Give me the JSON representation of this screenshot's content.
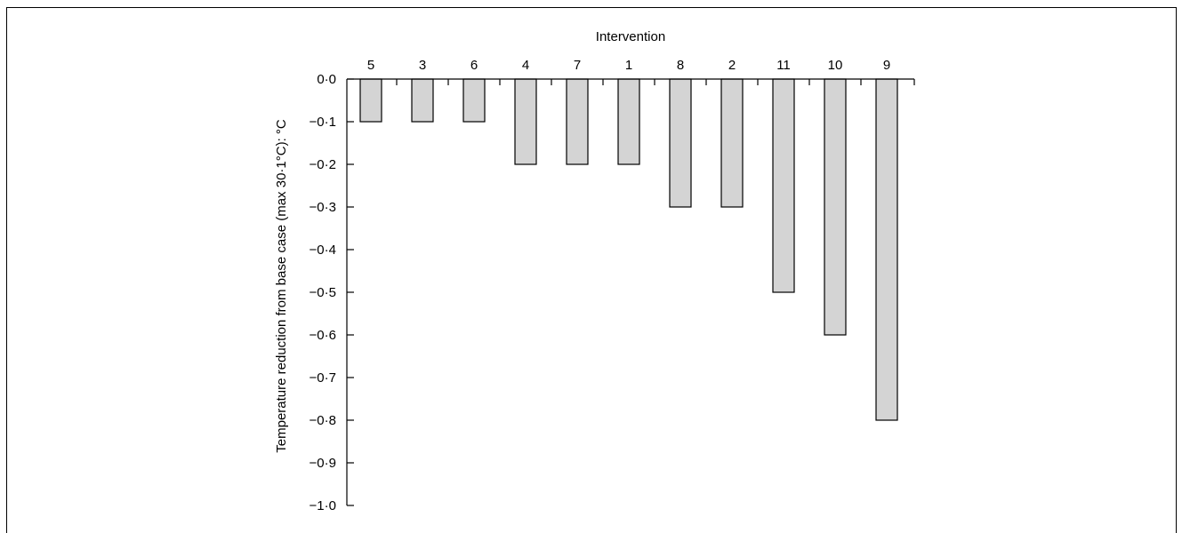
{
  "chart_data": {
    "type": "bar",
    "xlabel": "Intervention",
    "ylabel": "Temperature reduction from base case (max 30·1°C): °C",
    "categories": [
      "5",
      "3",
      "6",
      "4",
      "7",
      "1",
      "8",
      "2",
      "11",
      "10",
      "9"
    ],
    "values": [
      -0.1,
      -0.1,
      -0.1,
      -0.2,
      -0.2,
      -0.2,
      -0.3,
      -0.3,
      -0.5,
      -0.6,
      -0.8
    ],
    "ylim": [
      -1.0,
      0.0
    ],
    "yticks": [
      0.0,
      -0.1,
      -0.2,
      -0.3,
      -0.4,
      -0.5,
      -0.6,
      -0.7,
      -0.8,
      -0.9,
      -1.0
    ],
    "ytick_labels": [
      "0·0",
      "−0·1",
      "−0·2",
      "−0·3",
      "−0·4",
      "−0·5",
      "−0·6",
      "−0·7",
      "−0·8",
      "−0·9",
      "−1·0"
    ],
    "x_axis_position": "top",
    "grid": false,
    "bar_color": "#d4d4d4",
    "bar_edge_color": "#000000"
  }
}
